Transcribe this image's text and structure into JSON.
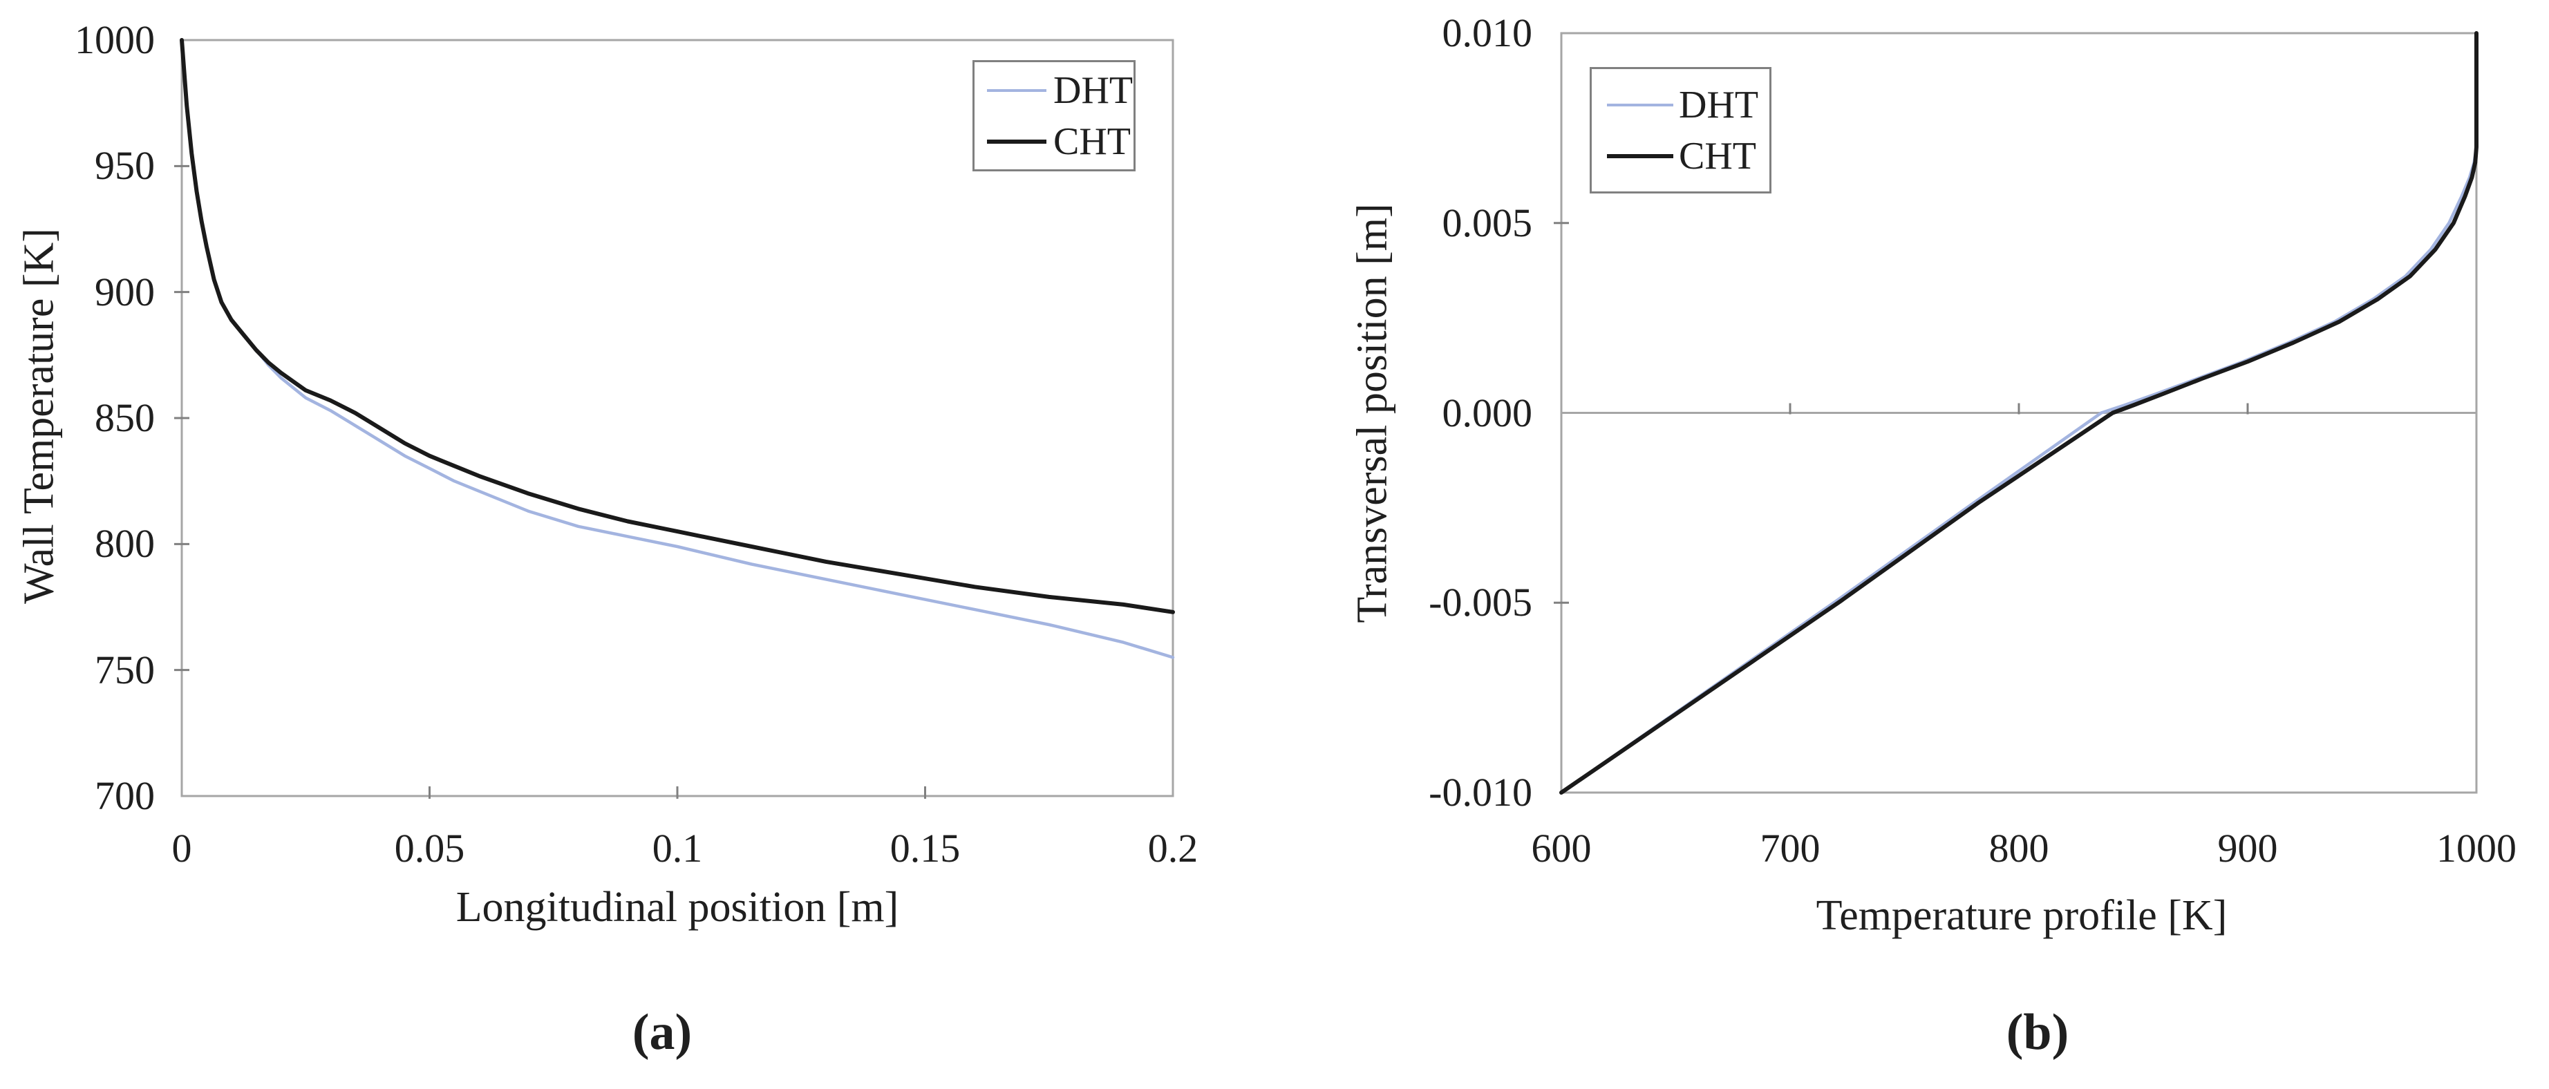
{
  "colors": {
    "dht": "#a3b4e0",
    "cht": "#1a1a1a",
    "axis": "#a6a6a6",
    "tick": "#808080",
    "text": "#1f1f1f",
    "legend_border": "#808080"
  },
  "chart_data": [
    {
      "id": "a",
      "type": "line",
      "caption": "(a)",
      "xlabel": "Longitudinal position [m]",
      "ylabel": "Wall Temperature [K]",
      "xlim": [
        0,
        0.2
      ],
      "ylim": [
        700,
        1000
      ],
      "grid": false,
      "legend_position": "top-right",
      "xticks": {
        "labels": [
          "0",
          "0.05",
          "0.1",
          "0.15",
          "0.2"
        ],
        "values": [
          0,
          0.05,
          0.1,
          0.15,
          0.2
        ],
        "marks": [
          0.05,
          0.1,
          0.15
        ]
      },
      "yticks": {
        "labels": [
          "1000",
          "950",
          "900",
          "850",
          "800",
          "750",
          "700"
        ],
        "values": [
          1000,
          950,
          900,
          850,
          800,
          750,
          700
        ],
        "marks": [
          950,
          900,
          850,
          800,
          750
        ]
      },
      "legend": {
        "entries": [
          {
            "label": "DHT",
            "color_key": "dht"
          },
          {
            "label": "CHT",
            "color_key": "cht"
          }
        ]
      },
      "series": [
        {
          "name": "DHT",
          "color_key": "dht",
          "x": [
            0,
            0.001,
            0.002,
            0.003,
            0.004,
            0.005,
            0.0065,
            0.008,
            0.01,
            0.0125,
            0.015,
            0.0175,
            0.02,
            0.025,
            0.03,
            0.035,
            0.04,
            0.045,
            0.05,
            0.055,
            0.06,
            0.07,
            0.08,
            0.09,
            0.1,
            0.115,
            0.13,
            0.145,
            0.16,
            0.175,
            0.19,
            0.2
          ],
          "y": [
            1000,
            974,
            955,
            940,
            928,
            918,
            905,
            896,
            889,
            883,
            877,
            871,
            866,
            858,
            853,
            847,
            841,
            835,
            830,
            825,
            821,
            813,
            807,
            803,
            799,
            792,
            786,
            780,
            774,
            768,
            761,
            755
          ]
        },
        {
          "name": "CHT",
          "color_key": "cht",
          "x": [
            0,
            0.001,
            0.002,
            0.003,
            0.004,
            0.005,
            0.0065,
            0.008,
            0.01,
            0.0125,
            0.015,
            0.0175,
            0.02,
            0.025,
            0.03,
            0.035,
            0.04,
            0.045,
            0.05,
            0.055,
            0.06,
            0.07,
            0.08,
            0.09,
            0.1,
            0.115,
            0.13,
            0.145,
            0.16,
            0.175,
            0.19,
            0.2
          ],
          "y": [
            1000,
            974,
            955,
            940,
            928,
            918,
            905,
            896,
            889,
            883,
            877,
            872,
            868,
            861,
            857,
            852,
            846,
            840,
            835,
            831,
            827,
            820,
            814,
            809,
            805,
            799,
            793,
            788,
            783,
            779,
            776,
            773
          ]
        }
      ]
    },
    {
      "id": "b",
      "type": "line",
      "caption": "(b)",
      "xlabel": "Temperature profile [K]",
      "ylabel": "Transversal position [m]",
      "xlim": [
        600,
        1000
      ],
      "ylim": [
        -0.01,
        0.01
      ],
      "grid": false,
      "legend_position": "top-left",
      "xticks": {
        "labels": [
          "600",
          "700",
          "800",
          "900",
          "1000"
        ],
        "values": [
          600,
          700,
          800,
          900,
          1000
        ],
        "marks": []
      },
      "yticks": {
        "labels": [
          "0.010",
          "0.005",
          "0.000",
          "-0.005",
          "-0.010"
        ],
        "values": [
          0.01,
          0.005,
          0.0,
          -0.005,
          -0.01
        ],
        "marks": [
          0.005,
          -0.005
        ]
      },
      "zero_axis": {
        "y": 0,
        "tick_values": [
          700,
          800,
          900
        ]
      },
      "legend": {
        "entries": [
          {
            "label": "DHT",
            "color_key": "dht"
          },
          {
            "label": "CHT",
            "color_key": "cht"
          }
        ]
      },
      "series": [
        {
          "name": "DHT",
          "color_key": "dht",
          "x": [
            600,
            660,
            720,
            780,
            836,
            846,
            860,
            878,
            898,
            918,
            938,
            955,
            969,
            980,
            988,
            993.5,
            997,
            999,
            1000,
            1000
          ],
          "y": [
            -0.01,
            -0.00748,
            -0.00496,
            -0.00238,
            0.0,
            0.0002,
            0.0005,
            0.0009,
            0.00135,
            0.00185,
            0.0024,
            0.003,
            0.0036,
            0.0043,
            0.005,
            0.0057,
            0.0062,
            0.0066,
            0.007,
            0.01
          ]
        },
        {
          "name": "CHT",
          "color_key": "cht",
          "x": [
            600,
            661,
            722,
            782,
            841,
            850,
            863,
            880,
            900,
            920,
            940,
            957,
            971,
            982,
            990,
            995,
            998,
            999.5,
            1000,
            1000
          ],
          "y": [
            -0.01,
            -0.00748,
            -0.00496,
            -0.00238,
            0.0,
            0.0002,
            0.0005,
            0.0009,
            0.00135,
            0.00185,
            0.0024,
            0.003,
            0.0036,
            0.0043,
            0.005,
            0.0057,
            0.0062,
            0.0066,
            0.007,
            0.01
          ]
        }
      ]
    }
  ]
}
